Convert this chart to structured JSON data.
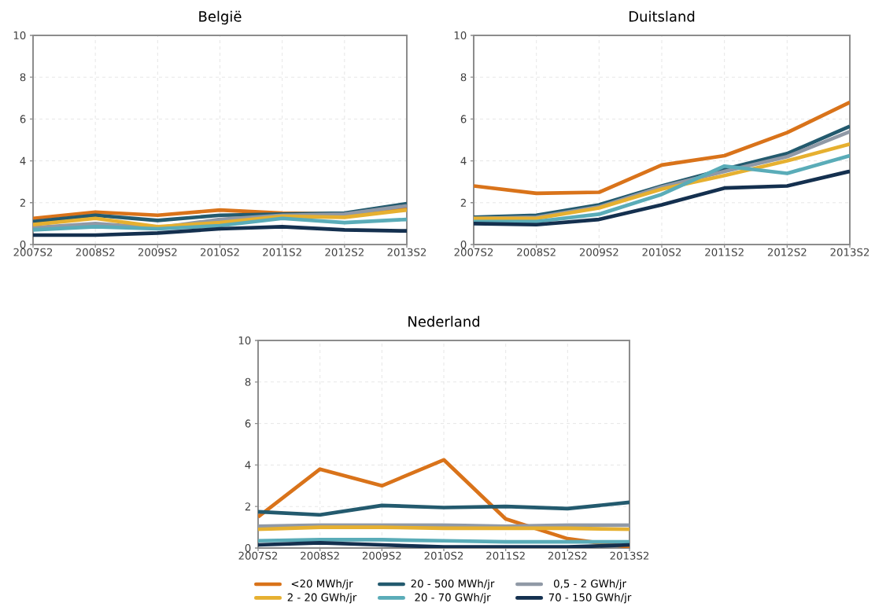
{
  "chart_data": [
    {
      "type": "line",
      "title": "België",
      "categories": [
        "2007S2",
        "2008S2",
        "2009S2",
        "2010S2",
        "2011S2",
        "2012S2",
        "2013S2"
      ],
      "ylim": [
        0,
        10
      ],
      "yticks": [
        0,
        2,
        4,
        6,
        8,
        10
      ],
      "grid": true,
      "line_style": "solid",
      "series": [
        {
          "color": "#d9731a",
          "values": [
            1.25,
            1.55,
            1.4,
            1.65,
            1.5,
            1.45,
            1.7
          ]
        },
        {
          "color": "#235a6e",
          "values": [
            1.1,
            1.4,
            1.15,
            1.4,
            1.45,
            1.5,
            1.95
          ]
        },
        {
          "color": "#9099a6",
          "values": [
            0.8,
            1.0,
            0.8,
            1.2,
            1.4,
            1.45,
            1.85
          ]
        },
        {
          "color": "#e6b030",
          "values": [
            0.95,
            1.25,
            0.85,
            1.05,
            1.35,
            1.3,
            1.65
          ]
        },
        {
          "color": "#5aacb8",
          "values": [
            0.7,
            0.85,
            0.75,
            0.9,
            1.25,
            1.05,
            1.2
          ]
        },
        {
          "color": "#14304f",
          "values": [
            0.45,
            0.45,
            0.55,
            0.75,
            0.85,
            0.7,
            0.65
          ]
        }
      ]
    },
    {
      "type": "line",
      "title": "Duitsland",
      "categories": [
        "2007S2",
        "2008S2",
        "2009S2",
        "2010S2",
        "2011S2",
        "2012S2",
        "2013S2"
      ],
      "ylim": [
        0,
        10
      ],
      "yticks": [
        0,
        2,
        4,
        6,
        8,
        10
      ],
      "grid": true,
      "line_style": "solid",
      "series": [
        {
          "color": "#d9731a",
          "values": [
            2.8,
            2.45,
            2.5,
            3.8,
            4.25,
            5.35,
            6.8
          ]
        },
        {
          "color": "#235a6e",
          "values": [
            1.3,
            1.4,
            1.9,
            2.8,
            3.6,
            4.35,
            5.65
          ]
        },
        {
          "color": "#9099a6",
          "values": [
            1.25,
            1.3,
            1.8,
            2.75,
            3.5,
            4.2,
            5.4
          ]
        },
        {
          "color": "#e6b030",
          "values": [
            1.25,
            1.25,
            1.75,
            2.65,
            3.3,
            4.0,
            4.8
          ]
        },
        {
          "color": "#5aacb8",
          "values": [
            1.1,
            1.1,
            1.45,
            2.4,
            3.75,
            3.4,
            4.25
          ]
        },
        {
          "color": "#14304f",
          "values": [
            1.0,
            0.95,
            1.2,
            1.9,
            2.7,
            2.8,
            3.5
          ]
        }
      ]
    },
    {
      "type": "line",
      "title": "Nederland",
      "categories": [
        "2007S2",
        "2008S2",
        "2009S2",
        "2010S2",
        "2011S2",
        "2012S2",
        "2013S2"
      ],
      "ylim": [
        0,
        10
      ],
      "yticks": [
        0,
        2,
        4,
        6,
        8,
        10
      ],
      "grid": true,
      "line_style": "solid",
      "legend": "bottom",
      "series": [
        {
          "name": "<20 MWh/jr",
          "color": "#d9731a",
          "values": [
            1.5,
            3.8,
            3.0,
            4.25,
            1.4,
            0.45,
            0.05
          ]
        },
        {
          "name": "20 - 500 MWh/jr",
          "color": "#235a6e",
          "values": [
            1.75,
            1.6,
            2.05,
            1.95,
            2.0,
            1.9,
            2.2
          ]
        },
        {
          "name": "0,5 - 2 GWh/jr",
          "color": "#9099a6",
          "values": [
            1.05,
            1.1,
            1.1,
            1.1,
            1.05,
            1.1,
            1.1
          ]
        },
        {
          "name": "2 - 20 GWh/jr",
          "color": "#e6b030",
          "values": [
            0.9,
            1.0,
            1.0,
            0.95,
            0.95,
            0.95,
            0.9
          ]
        },
        {
          "name": "20 - 70 GWh/jr",
          "color": "#5aacb8",
          "values": [
            0.35,
            0.4,
            0.4,
            0.35,
            0.3,
            0.3,
            0.3
          ]
        },
        {
          "name": "70 - 150 GWh/jr",
          "color": "#14304f",
          "values": [
            0.15,
            0.25,
            0.15,
            0.05,
            0.05,
            0.05,
            0.15
          ]
        }
      ]
    }
  ]
}
